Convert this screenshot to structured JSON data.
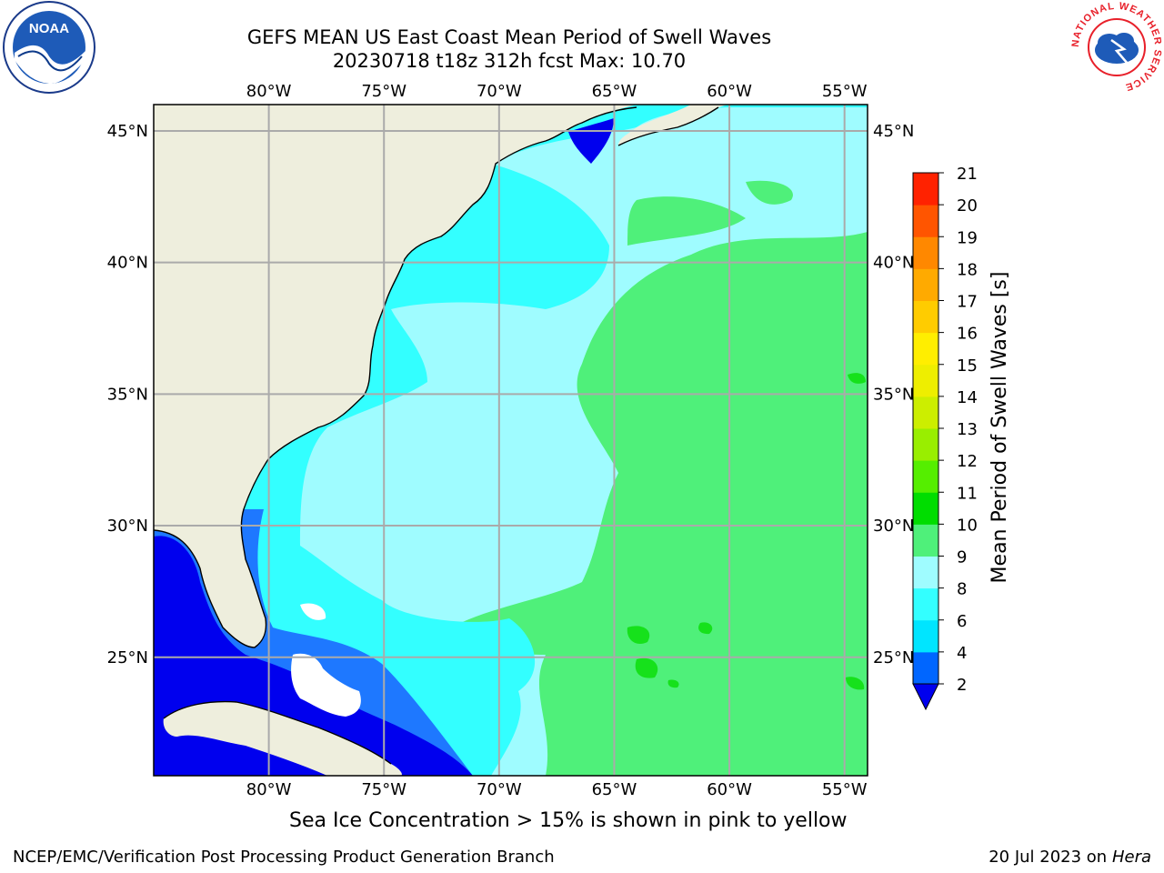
{
  "header": {
    "title_line1": "GEFS MEAN US East Coast Mean Period of Swell Waves",
    "title_line2": "20230718 t18z 312h fcst   Max: 10.70"
  },
  "logos": {
    "left": "NOAA",
    "right": "NATIONAL WEATHER SERVICE"
  },
  "map": {
    "lon_ticks": [
      "80°W",
      "75°W",
      "70°W",
      "65°W",
      "60°W",
      "55°W"
    ],
    "lat_ticks": [
      "45°N",
      "40°N",
      "35°N",
      "30°N",
      "25°N"
    ],
    "lon_range": [
      -85,
      -54
    ],
    "lat_range": [
      20.5,
      46
    ],
    "colors": {
      "land": "#eeeedd",
      "grid": "#aaaaaa",
      "coast": "#000000",
      "period_2_4": "#0000ee",
      "period_4_6": "#1e78ff",
      "period_6_8": "#33ffff",
      "period_8_9": "#9ffcff",
      "period_9_10": "#4ff07a",
      "period_10_11": "#16e11b"
    }
  },
  "colorbar": {
    "label": "Mean Period of Swell Waves [s]",
    "levels": [
      "2",
      "4",
      "6",
      "8",
      "9",
      "10",
      "11",
      "12",
      "13",
      "14",
      "15",
      "16",
      "17",
      "18",
      "19",
      "20",
      "21"
    ],
    "colors": [
      "#0066ff",
      "#00e5ff",
      "#33ffff",
      "#9ffcff",
      "#4ff07a",
      "#00dd00",
      "#55ee00",
      "#99ee00",
      "#ccee00",
      "#eeee00",
      "#ffee00",
      "#ffcc00",
      "#ffaa00",
      "#ff8800",
      "#ff5500",
      "#ff2200"
    ],
    "under_color": "#0000ee"
  },
  "footer": {
    "sea_ice_note": "Sea Ice Concentration > 15% is shown in pink to yellow",
    "credit": "NCEP/EMC/Verification Post Processing Product Generation Branch",
    "date": "20 Jul 2023 on ",
    "host": "Hera"
  }
}
